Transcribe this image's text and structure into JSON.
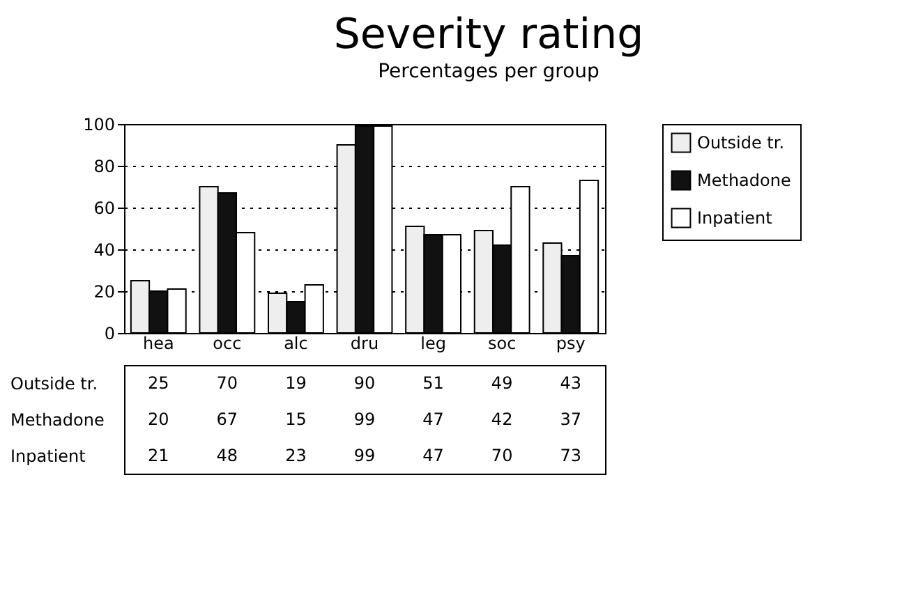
{
  "chart_data": {
    "type": "bar",
    "title": "Severity rating",
    "subtitle": "Percentages per group",
    "categories": [
      "hea",
      "occ",
      "alc",
      "dru",
      "leg",
      "soc",
      "psy"
    ],
    "series": [
      {
        "name": "Outside tr.",
        "color": "#eeeeee",
        "values": [
          25,
          70,
          19,
          90,
          51,
          49,
          43
        ]
      },
      {
        "name": "Methadone",
        "color": "#111111",
        "values": [
          20,
          67,
          15,
          99,
          47,
          42,
          37
        ]
      },
      {
        "name": "Inpatient",
        "color": "#ffffff",
        "values": [
          21,
          48,
          23,
          99,
          47,
          70,
          73
        ]
      }
    ],
    "ylim": [
      0,
      100
    ],
    "yticks": [
      0,
      20,
      40,
      60,
      80,
      100
    ],
    "grid": "y",
    "legend": "right",
    "data_labels": true
  }
}
